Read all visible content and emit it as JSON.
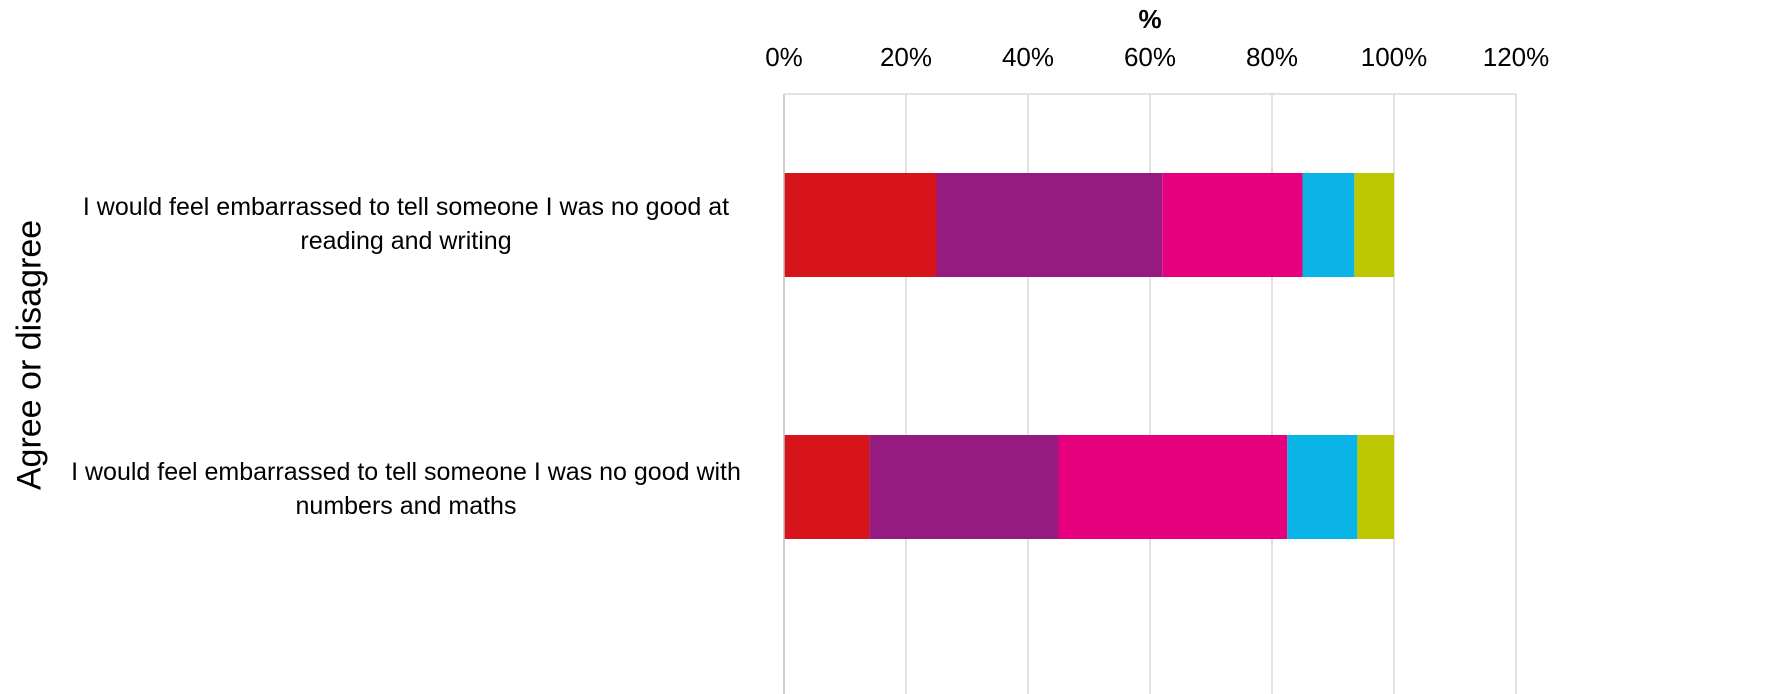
{
  "chart_data": {
    "type": "bar",
    "orientation": "horizontal",
    "stacked": true,
    "xlabel": "%",
    "ylabel": "Agree or disagree",
    "xlim": [
      0,
      120
    ],
    "xticks": [
      "0%",
      "20%",
      "40%",
      "60%",
      "80%",
      "100%",
      "120%"
    ],
    "x_axis_position": "top",
    "grid": true,
    "categories": [
      "I would feel embarrassed to tell someone I was no good at reading and writing",
      "I would feel embarrassed to tell someone I was no good with numbers and maths"
    ],
    "series": [
      {
        "color": "#d7141a",
        "values": [
          25,
          14
        ]
      },
      {
        "color": "#951b81",
        "values": [
          37,
          31
        ]
      },
      {
        "color": "#e6007e",
        "values": [
          23,
          37.5
        ]
      },
      {
        "color": "#0ab4e6",
        "values": [
          8.5,
          11.5
        ]
      },
      {
        "color": "#bec800",
        "values": [
          6.5,
          6
        ]
      }
    ]
  }
}
